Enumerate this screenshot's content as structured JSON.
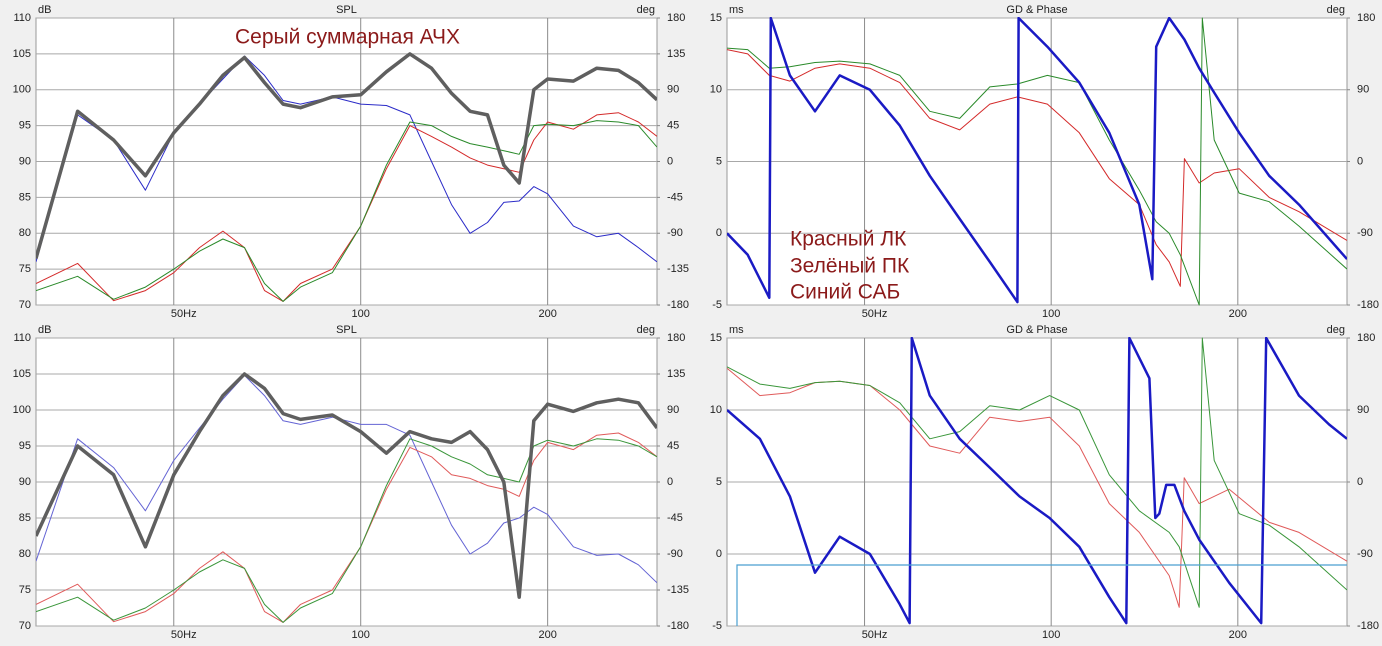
{
  "chart_data": [
    {
      "type": "line",
      "title": "SPL",
      "ylabel": "dB",
      "y2label": "deg",
      "xlog": true,
      "grid": true,
      "xlim": [
        30,
        300
      ],
      "xticks": [
        {
          "value": 50,
          "label": "50Hz"
        },
        100,
        200
      ],
      "ylim": [
        70,
        110
      ],
      "yticks": [
        70,
        75,
        80,
        85,
        90,
        95,
        100,
        105,
        110
      ],
      "y2lim": [
        -180,
        180
      ],
      "y2ticks": [
        -180,
        -135,
        -90,
        -45,
        0,
        45,
        90,
        135,
        180
      ],
      "annotations": [
        "Серый суммарная АЧХ"
      ],
      "x": [
        30,
        35,
        40,
        45,
        50,
        55,
        60,
        65,
        70,
        75,
        80,
        90,
        100,
        110,
        120,
        130,
        140,
        150,
        160,
        170,
        180,
        190,
        200,
        220,
        240,
        260,
        280,
        300
      ],
      "series": [
        {
          "color": "#2b2bc8",
          "linewidth": 1,
          "values": [
            76,
            96.5,
            93,
            86,
            94,
            98,
            101.5,
            104.7,
            102,
            98.5,
            98,
            99,
            98,
            97.8,
            96.5,
            90,
            84,
            80,
            81.5,
            84.3,
            84.5,
            86.5,
            85.5,
            81,
            79.5,
            80,
            78,
            76
          ]
        },
        {
          "color": "#d42a2a",
          "linewidth": 1,
          "values": [
            73,
            75.8,
            70.6,
            72,
            74.5,
            78,
            80.3,
            78,
            72,
            70.5,
            73,
            75,
            81,
            89,
            95,
            93.5,
            92,
            90.5,
            89.5,
            89,
            88.5,
            93,
            95.5,
            94.5,
            96.5,
            96.8,
            95.5,
            93.5
          ]
        },
        {
          "color": "#2a8a2a",
          "linewidth": 1,
          "values": [
            72,
            74,
            70.8,
            72.5,
            75,
            77.5,
            79.2,
            78,
            73,
            70.5,
            72.5,
            74.5,
            81,
            89.5,
            95.5,
            95,
            93.5,
            92.5,
            92,
            91.5,
            91,
            95,
            95.2,
            95,
            95.7,
            95.5,
            95,
            92
          ]
        },
        {
          "color": "#5f5f5f",
          "linewidth": 3.5,
          "values": [
            76.5,
            97,
            93,
            88,
            94,
            98,
            102,
            104.5,
            101,
            98,
            97.5,
            99,
            99.3,
            102.5,
            105,
            103,
            99.5,
            97,
            96.5,
            89.5,
            87,
            100,
            101.5,
            101.2,
            103,
            102.7,
            101,
            98.6
          ]
        }
      ]
    },
    {
      "type": "line",
      "title": "GD & Phase",
      "ylabel": "ms",
      "y2label": "deg",
      "xlog": true,
      "grid": true,
      "xlim": [
        30,
        300
      ],
      "xticks": [
        {
          "value": 50,
          "label": "50Hz"
        },
        100,
        200
      ],
      "ylim": [
        -5,
        15
      ],
      "yticks": [
        -5,
        0,
        5,
        10,
        15
      ],
      "y2lim": [
        -180,
        180
      ],
      "y2ticks": [
        -180,
        -90,
        0,
        90,
        180
      ],
      "annotations": [
        "Красный ЛК",
        "Зелёный ПК",
        "Синий САБ"
      ],
      "series": [
        {
          "color": "#d42a2a",
          "linewidth": 1,
          "x": [
            30,
            32.4,
            35.1,
            37.9,
            41.6,
            45.6,
            51,
            57,
            63.7,
            71.2,
            79.6,
            88.2,
            98.6,
            111,
            124.1,
            138.7,
            147.7,
            155,
            161.5,
            164,
            173.3,
            183.2,
            201,
            224.7,
            251,
            300
          ],
          "values": [
            12.8,
            12.5,
            11,
            10.6,
            11.5,
            11.8,
            11.5,
            10.5,
            8,
            7.2,
            9,
            9.5,
            9,
            7,
            3.8,
            2,
            -0.8,
            -2,
            -3.7,
            5.2,
            3.5,
            4.2,
            4.5,
            2.5,
            1.5,
            -0.5
          ]
        },
        {
          "color": "#2a8a2a",
          "linewidth": 1,
          "x": [
            30,
            32.4,
            35.1,
            37.9,
            41.6,
            45.6,
            51,
            57,
            63.7,
            71.2,
            79.6,
            88.2,
            98.6,
            111,
            124.1,
            138.7,
            147.7,
            155,
            161.5,
            173.3,
            175.3,
            183.2,
            201,
            224.7,
            251,
            300
          ],
          "values": [
            12.9,
            12.8,
            11.5,
            11.6,
            11.9,
            12,
            11.8,
            11,
            8.5,
            8,
            10.2,
            10.4,
            11,
            10.5,
            6.5,
            3,
            0.8,
            0,
            -1.5,
            -5,
            15,
            6.5,
            2.8,
            2.2,
            0.5,
            -2.5
          ]
        },
        {
          "color": "#1a1ac4",
          "linewidth": 2.5,
          "x": [
            30,
            32.4,
            35.1,
            35.3,
            37.9,
            41.6,
            45.6,
            51,
            57,
            63.7,
            71.2,
            79.6,
            88.2,
            88.6,
            98.6,
            111,
            124.1,
            138.7,
            145.6,
            147.7,
            155,
            164,
            173.3,
            183.2,
            201,
            224.7,
            251,
            300
          ],
          "values": [
            0,
            -1.5,
            -4.5,
            15,
            11,
            8.5,
            11,
            10,
            7.5,
            4,
            1,
            -2,
            -4.8,
            15,
            13,
            10.5,
            7,
            2,
            -3.2,
            13,
            15,
            13.5,
            11.5,
            9.8,
            7,
            4,
            2,
            -1.8
          ]
        }
      ]
    },
    {
      "type": "line",
      "title": "SPL",
      "ylabel": "dB",
      "y2label": "deg",
      "xlog": true,
      "grid": true,
      "xlim": [
        30,
        300
      ],
      "xticks": [
        {
          "value": 50,
          "label": "50Hz"
        },
        100,
        200
      ],
      "ylim": [
        70,
        110
      ],
      "yticks": [
        70,
        75,
        80,
        85,
        90,
        95,
        100,
        105,
        110
      ],
      "y2lim": [
        -180,
        180
      ],
      "y2ticks": [
        -180,
        -135,
        -90,
        -45,
        0,
        45,
        90,
        135,
        180
      ],
      "x": [
        30,
        35,
        40,
        45,
        50,
        55,
        60,
        65,
        70,
        75,
        80,
        90,
        100,
        110,
        120,
        130,
        140,
        150,
        160,
        170,
        180,
        190,
        200,
        220,
        240,
        260,
        280,
        300
      ],
      "series": [
        {
          "color": "#6464d4",
          "linewidth": 1,
          "values": [
            79,
            96,
            92,
            86,
            93,
            97.5,
            101.5,
            104.8,
            102,
            98.5,
            98,
            99,
            98,
            98,
            96.5,
            90,
            84,
            80,
            81.5,
            84.3,
            85,
            86.5,
            85.5,
            81,
            79.8,
            80,
            78.5,
            76
          ]
        },
        {
          "color": "#e05a5a",
          "linewidth": 1,
          "values": [
            73,
            75.8,
            70.6,
            72,
            74.5,
            78,
            80.3,
            78,
            72,
            70.5,
            73,
            75,
            81,
            89,
            94.8,
            93.5,
            91,
            90.5,
            89.5,
            89,
            88,
            93,
            95.5,
            94.5,
            96.5,
            96.8,
            95.5,
            93.5
          ]
        },
        {
          "color": "#3a963a",
          "linewidth": 1,
          "values": [
            72,
            74,
            70.8,
            72.5,
            75,
            77.5,
            79.2,
            78,
            73,
            70.5,
            72.5,
            74.5,
            81,
            89.5,
            96,
            95,
            93.5,
            92.5,
            91,
            90.5,
            90,
            95,
            95.8,
            95,
            96,
            95.8,
            95,
            93.5
          ]
        },
        {
          "color": "#5f5f5f",
          "linewidth": 3.5,
          "values": [
            82.5,
            95,
            91,
            81,
            91,
            97,
            102,
            105,
            103,
            99.5,
            98.7,
            99.3,
            97,
            94,
            97,
            96,
            95.5,
            97,
            94.5,
            90,
            74,
            98.5,
            100.8,
            99.8,
            101,
            101.5,
            101,
            97.5
          ]
        }
      ]
    },
    {
      "type": "line",
      "title": "GD & Phase",
      "ylabel": "ms",
      "y2label": "deg",
      "xlog": true,
      "grid": true,
      "xlim": [
        30,
        300
      ],
      "xticks": [
        {
          "value": 50,
          "label": "50Hz"
        },
        100,
        200
      ],
      "ylim": [
        -5,
        15
      ],
      "yticks": [
        -5,
        0,
        5,
        10,
        15
      ],
      "y2lim": [
        -180,
        180
      ],
      "y2ticks": [
        -180,
        -90,
        0,
        90,
        180
      ],
      "series": [
        {
          "color": "#e05a5a",
          "linewidth": 1,
          "x": [
            30,
            33.9,
            37.9,
            41.6,
            45.6,
            51,
            57,
            63.7,
            71.2,
            79.6,
            88.9,
            99.4,
            111,
            124.1,
            138.7,
            155,
            160.9,
            163.9,
            173.3,
            193.7,
            224.7,
            251,
            300
          ],
          "values": [
            12.9,
            11,
            11.2,
            11.9,
            12,
            11.7,
            10,
            7.5,
            7,
            9.5,
            9.2,
            9.5,
            7.5,
            3.5,
            1.5,
            -1.5,
            -3.7,
            5.3,
            3.5,
            4.5,
            2.2,
            1.5,
            -0.5
          ]
        },
        {
          "color": "#3a963a",
          "linewidth": 1,
          "x": [
            30,
            33.9,
            37.9,
            41.6,
            45.6,
            51,
            57,
            63.7,
            71.2,
            79.6,
            88.9,
            99.4,
            111,
            124.1,
            138.7,
            155,
            160.9,
            173.3,
            175.3,
            183.2,
            201,
            224.7,
            251,
            300
          ],
          "values": [
            13,
            11.8,
            11.5,
            11.9,
            12,
            11.7,
            10.5,
            8,
            8.5,
            10.3,
            10,
            11,
            10,
            5.5,
            3,
            1.5,
            0.5,
            -3.7,
            15,
            6.5,
            2.8,
            2,
            0.5,
            -2.5
          ]
        },
        {
          "color": "#1a1ac4",
          "linewidth": 2.5,
          "x": [
            30,
            33.9,
            37.9,
            41.6,
            45.6,
            51,
            57,
            59.1,
            59.6,
            63.7,
            71.2,
            79.6,
            88.9,
            99.4,
            111,
            124.1,
            132.2,
            133.7,
            144,
            147.2,
            149.4,
            153.3,
            158,
            163.9,
            173.3,
            193.7,
            218.1,
            222.2,
            251,
            280.6,
            300
          ],
          "values": [
            10,
            8,
            4,
            -1.3,
            1.2,
            0,
            -3.5,
            -4.8,
            15,
            11,
            8,
            6,
            4,
            2.5,
            0.5,
            -3,
            -4.8,
            15,
            12.2,
            2.5,
            2.8,
            4.8,
            4.8,
            3,
            1,
            -2,
            -4.8,
            15,
            11,
            9,
            8
          ]
        }
      ]
    }
  ]
}
